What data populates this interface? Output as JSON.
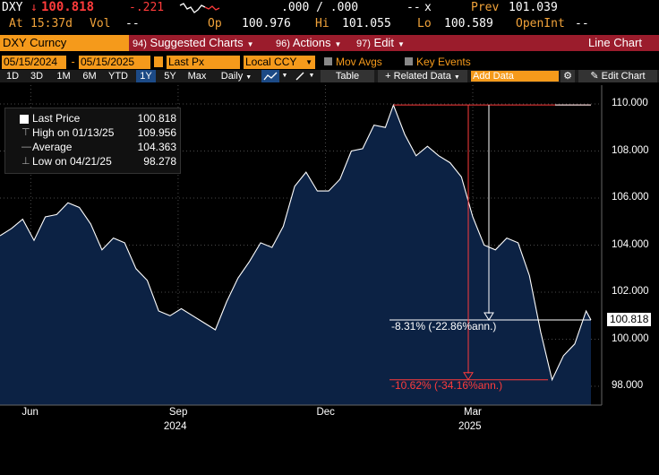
{
  "quote": {
    "ticker": "DXY",
    "last": "100.818",
    "change": "-.221",
    "bid_ask": ".000 / .000",
    "x_mark": "x",
    "prev_label": "Prev",
    "prev": "101.039",
    "at_label": "At",
    "at_time": "15:37d",
    "vol_label": "Vol",
    "vol": "--",
    "op_label": "Op",
    "op": "100.976",
    "hi_label": "Hi",
    "hi": "101.055",
    "lo_label": "Lo",
    "lo": "100.589",
    "openint_label": "OpenInt",
    "openint": "--",
    "placeholder_dashes": "--"
  },
  "titlebar": {
    "security": "DXY Curncy",
    "suggested_num": "94)",
    "suggested": "Suggested Charts",
    "actions_num": "96)",
    "actions": "Actions",
    "edit_num": "97)",
    "edit": "Edit",
    "view": "Line Chart"
  },
  "settings": {
    "start_date": "05/15/2024",
    "end_date": "05/15/2025",
    "field": "Last Px",
    "currency": "Local CCY",
    "mov_avgs": "Mov Avgs",
    "key_events": "Key Events"
  },
  "toolbar": {
    "periods": [
      "1D",
      "3D",
      "1M",
      "6M",
      "YTD",
      "1Y",
      "5Y",
      "Max"
    ],
    "selected_period": "1Y",
    "frequency": "Daily",
    "table": "Table",
    "related_data": "Related Data",
    "add_data_placeholder": "Add Data",
    "edit_chart": "Edit Chart"
  },
  "legend": {
    "last_price_label": "Last Price",
    "last_price": "100.818",
    "high_label": "High on 01/13/25",
    "high": "109.956",
    "average_label": "Average",
    "average": "104.363",
    "low_label": "Low on 04/21/25",
    "low": "98.278"
  },
  "annotations": {
    "from_high": "-8.31% (-22.86%ann.)",
    "high_to_low": "-10.62% (-34.16%ann.)"
  },
  "chart_data": {
    "type": "area",
    "title": "",
    "xlabel": "",
    "ylabel": "",
    "ylim": [
      97.2,
      110.8
    ],
    "yticks": [
      "110.000",
      "108.000",
      "106.000",
      "104.000",
      "102.000",
      "100.000",
      "98.000"
    ],
    "ytick_values": [
      110,
      108,
      106,
      104,
      102,
      100,
      98
    ],
    "xticks": [
      {
        "label": "Jun",
        "date": "2024-06-03"
      },
      {
        "label": "Sep",
        "date": "2024-09-02"
      },
      {
        "label": "Dec",
        "date": "2024-12-02"
      },
      {
        "label": "Mar",
        "date": "2025-03-03"
      }
    ],
    "year_labels": [
      {
        "label": "2024",
        "date": "2024-09-02"
      },
      {
        "label": "2025",
        "date": "2025-03-03"
      }
    ],
    "last_value_label": "100.818",
    "series": [
      {
        "color": "#ffffff",
        "fill": "#0b1d3a",
        "x": [
          "2024-05-15",
          "2024-05-22",
          "2024-05-29",
          "2024-06-05",
          "2024-06-12",
          "2024-06-19",
          "2024-06-26",
          "2024-07-03",
          "2024-07-10",
          "2024-07-17",
          "2024-07-24",
          "2024-07-31",
          "2024-08-07",
          "2024-08-14",
          "2024-08-21",
          "2024-08-28",
          "2024-09-04",
          "2024-09-11",
          "2024-09-18",
          "2024-09-25",
          "2024-10-02",
          "2024-10-09",
          "2024-10-16",
          "2024-10-23",
          "2024-10-30",
          "2024-11-06",
          "2024-11-13",
          "2024-11-20",
          "2024-11-27",
          "2024-12-04",
          "2024-12-11",
          "2024-12-18",
          "2024-12-25",
          "2025-01-01",
          "2025-01-08",
          "2025-01-13",
          "2025-01-20",
          "2025-01-27",
          "2025-02-03",
          "2025-02-10",
          "2025-02-17",
          "2025-02-24",
          "2025-03-03",
          "2025-03-10",
          "2025-03-17",
          "2025-03-24",
          "2025-03-31",
          "2025-04-07",
          "2025-04-14",
          "2025-04-21",
          "2025-04-28",
          "2025-05-05",
          "2025-05-12",
          "2025-05-15"
        ],
        "y": [
          104.4,
          104.7,
          105.1,
          104.2,
          105.2,
          105.3,
          105.8,
          105.6,
          104.9,
          103.8,
          104.3,
          104.1,
          103.0,
          102.5,
          101.2,
          101.0,
          101.3,
          101.0,
          100.7,
          100.4,
          101.6,
          102.6,
          103.3,
          104.1,
          103.9,
          104.8,
          106.5,
          107.1,
          106.3,
          106.3,
          106.8,
          108.0,
          108.1,
          109.1,
          109.0,
          109.956,
          108.7,
          107.8,
          108.2,
          107.8,
          107.5,
          106.9,
          105.2,
          104.0,
          103.8,
          104.3,
          104.1,
          102.7,
          100.3,
          98.278,
          99.3,
          99.8,
          101.2,
          100.818
        ]
      }
    ],
    "grid": true,
    "legend_position": "top-left"
  }
}
